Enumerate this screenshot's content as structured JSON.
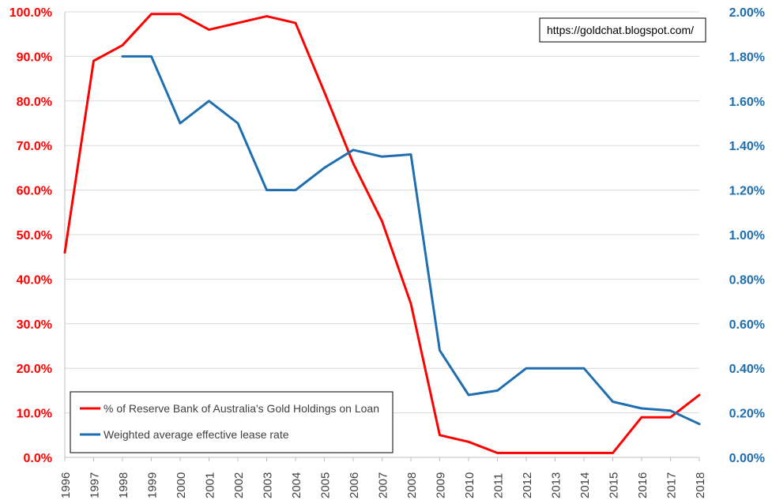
{
  "chart_data": {
    "type": "line",
    "title": "",
    "xlabel": "",
    "ylabel": "",
    "x": [
      "1996",
      "1997",
      "1998",
      "1999",
      "2000",
      "2001",
      "2002",
      "2003",
      "2004",
      "2005",
      "2006",
      "2007",
      "2008",
      "2009",
      "2010",
      "2011",
      "2012",
      "2013",
      "2014",
      "2015",
      "2016",
      "2017",
      "2018"
    ],
    "left_axis": {
      "ylim": [
        0,
        100
      ],
      "ticks": [
        "0.0%",
        "10.0%",
        "20.0%",
        "30.0%",
        "40.0%",
        "50.0%",
        "60.0%",
        "70.0%",
        "80.0%",
        "90.0%",
        "100.0%"
      ],
      "color": "#ff0000"
    },
    "right_axis": {
      "ylim": [
        0,
        2.0
      ],
      "ticks": [
        "0.00%",
        "0.20%",
        "0.40%",
        "0.60%",
        "0.80%",
        "1.00%",
        "1.20%",
        "1.40%",
        "1.60%",
        "1.80%",
        "2.00%"
      ],
      "color": "#1f6fb0"
    },
    "series": [
      {
        "name": "% of Reserve Bank of Australia's Gold Holdings on Loan",
        "axis": "left",
        "color": "#ff0000",
        "values": [
          46,
          89,
          92.5,
          99.5,
          99.5,
          96,
          97.5,
          99,
          97.5,
          82,
          66,
          53,
          34.5,
          5,
          3.5,
          1,
          1,
          1,
          1,
          1,
          9,
          9,
          14
        ]
      },
      {
        "name": "Weighted average effective lease rate",
        "axis": "right",
        "color": "#1f6fb0",
        "values": [
          null,
          null,
          1.8,
          1.8,
          1.5,
          1.6,
          1.5,
          1.2,
          1.2,
          1.3,
          1.38,
          1.35,
          1.36,
          0.48,
          0.28,
          0.3,
          0.4,
          0.4,
          0.4,
          0.25,
          0.22,
          0.21,
          0.15
        ]
      }
    ],
    "annotation": "https://goldchat.blogspot.com/",
    "legend_position": "bottom-left",
    "grid": true
  }
}
